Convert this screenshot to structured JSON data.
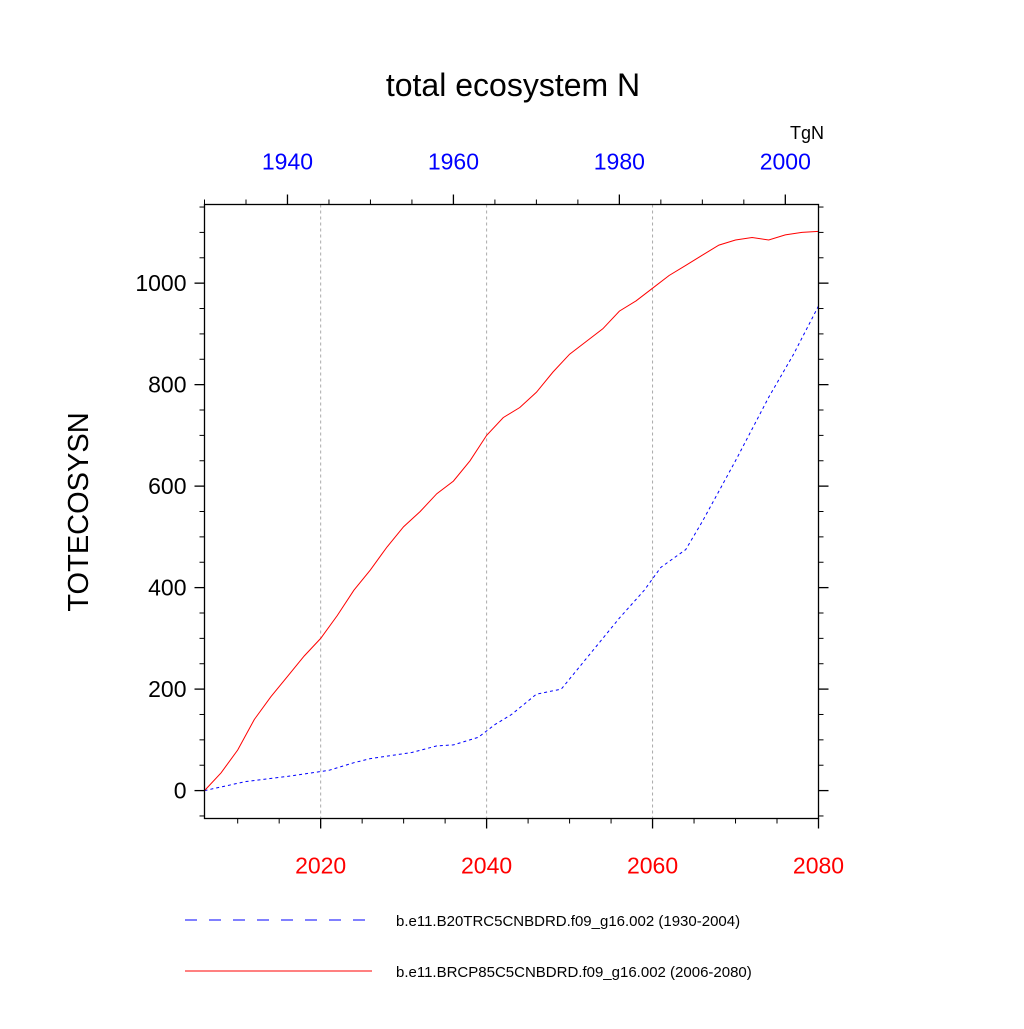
{
  "chart_data": {
    "type": "line",
    "title": "total ecosystem N",
    "ylabel": "TOTECOSYSN",
    "units": "TgN",
    "ylim": [
      -55,
      1155
    ],
    "yticks": [
      0,
      200,
      400,
      600,
      800,
      1000
    ],
    "grid": "vertical dotted lines at bottom-axis major ticks",
    "colors": {
      "historical": "#0000ff",
      "future": "#ff0000",
      "axis": "#000000",
      "grid": "#aaaaaa"
    },
    "x_bottom": {
      "range": [
        2006,
        2080
      ],
      "ticks": [
        2020,
        2040,
        2060,
        2080
      ],
      "tick_color": "#ff0000"
    },
    "x_top": {
      "range": [
        1930,
        2004
      ],
      "ticks": [
        1940,
        1960,
        1980,
        2000
      ],
      "tick_color": "#0000ff"
    },
    "legend_position": "bottom",
    "series": [
      {
        "name": "b.e11.B20TRC5CNBDRD.f09_g16.002 (1930-2004)",
        "axis": "top",
        "style": "dashed",
        "color": "#0000ff",
        "x": [
          1930,
          1935,
          1940,
          1945,
          1948,
          1950,
          1955,
          1958,
          1960,
          1963,
          1965,
          1967,
          1970,
          1973,
          1975,
          1978,
          1980,
          1983,
          1985,
          1988,
          1990,
          1994,
          1998,
          2001,
          2004
        ],
        "y": [
          0,
          18,
          28,
          40,
          55,
          63,
          75,
          88,
          90,
          105,
          130,
          150,
          190,
          200,
          240,
          300,
          340,
          395,
          440,
          475,
          530,
          650,
          775,
          860,
          955
        ]
      },
      {
        "name": "b.e11.BRCP85C5CNBDRD.f09_g16.002 (2006-2080)",
        "axis": "bottom",
        "style": "solid",
        "color": "#ff0000",
        "x": [
          2006,
          2008,
          2010,
          2012,
          2014,
          2016,
          2018,
          2020,
          2022,
          2024,
          2026,
          2028,
          2030,
          2032,
          2034,
          2036,
          2038,
          2040,
          2042,
          2044,
          2046,
          2048,
          2050,
          2052,
          2054,
          2056,
          2058,
          2060,
          2062,
          2064,
          2066,
          2068,
          2070,
          2072,
          2074,
          2076,
          2078,
          2080
        ],
        "y": [
          0,
          35,
          80,
          140,
          185,
          225,
          265,
          300,
          345,
          395,
          435,
          480,
          520,
          550,
          585,
          610,
          650,
          700,
          735,
          755,
          785,
          825,
          860,
          885,
          910,
          945,
          965,
          990,
          1015,
          1035,
          1055,
          1075,
          1085,
          1090,
          1085,
          1095,
          1100,
          1102
        ]
      }
    ]
  }
}
